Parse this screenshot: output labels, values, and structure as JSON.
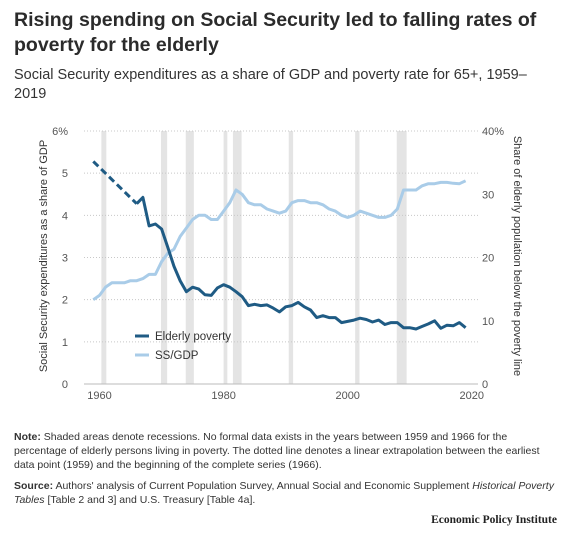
{
  "title": "Rising spending on Social Security led to falling rates of poverty for the elderly",
  "subtitle": "Social Security expenditures as a share of GDP and poverty rate for 65+, 1959–2019",
  "notes": {
    "note_label": "Note:",
    "note_text": "Shaded areas denote recessions. No formal data exists in the years between 1959 and 1966 for the percentage of elderly persons living in poverty. The dotted line denotes a linear extrapolation between the earliest data point (1959) and the beginning of the complete series (1966).",
    "source_label": "Source:",
    "source_text_1": "Authors' analysis of Current Population Survey, Annual Social and Economic Supplement",
    "source_italic": "Historical Poverty Tables",
    "source_text_2": "[Table 2 and 3] and U.S. Treasury [Table 4a]."
  },
  "credit": "Economic Policy Institute",
  "chart_data": {
    "type": "line",
    "title": "Rising spending on Social Security led to falling rates of poverty for the elderly",
    "subtitle": "Social Security expenditures as a share of GDP and poverty rate for 65+, 1959–2019",
    "xlabel": "",
    "ylabel_left": "Social Security expenditures as a share of GDP",
    "ylabel_right": "Share of elderly population below the poverty line",
    "xlim": [
      1957.5,
      2021
    ],
    "ylim_left": [
      0,
      6
    ],
    "ylim_right": [
      0,
      40
    ],
    "x_ticks": [
      1960,
      1980,
      2000,
      2020
    ],
    "y_left_ticks": [
      "0",
      "1",
      "2",
      "3",
      "4",
      "5",
      "6%"
    ],
    "y_right_ticks": [
      "0",
      "10",
      "20",
      "30",
      "40%"
    ],
    "grid": "horizontal dotted",
    "legend_position": "bottom-left",
    "recessions": [
      [
        1960.3,
        1961.1
      ],
      [
        1969.9,
        1970.9
      ],
      [
        1973.9,
        1975.2
      ],
      [
        1980.0,
        1980.6
      ],
      [
        1981.5,
        1982.9
      ],
      [
        1990.5,
        1991.2
      ],
      [
        2001.2,
        2001.9
      ],
      [
        2007.9,
        2009.5
      ]
    ],
    "series": [
      {
        "name": "Elderly poverty",
        "axis": "right",
        "color": "#1f5b84",
        "x": [
          1966,
          1967,
          1968,
          1969,
          1970,
          1971,
          1972,
          1973,
          1974,
          1975,
          1976,
          1977,
          1978,
          1979,
          1980,
          1981,
          1982,
          1983,
          1984,
          1985,
          1986,
          1987,
          1988,
          1989,
          1990,
          1991,
          1992,
          1993,
          1994,
          1995,
          1996,
          1997,
          1998,
          1999,
          2000,
          2001,
          2002,
          2003,
          2004,
          2005,
          2006,
          2007,
          2008,
          2009,
          2010,
          2011,
          2012,
          2013,
          2014,
          2015,
          2016,
          2017,
          2018,
          2019
        ],
        "values": [
          28.5,
          29.5,
          25.0,
          25.3,
          24.5,
          21.6,
          18.6,
          16.3,
          14.6,
          15.3,
          15.0,
          14.1,
          14.0,
          15.2,
          15.7,
          15.3,
          14.6,
          13.8,
          12.4,
          12.6,
          12.4,
          12.5,
          12.0,
          11.4,
          12.2,
          12.4,
          12.9,
          12.2,
          11.7,
          10.5,
          10.8,
          10.5,
          10.5,
          9.7,
          9.9,
          10.1,
          10.4,
          10.2,
          9.8,
          10.1,
          9.4,
          9.7,
          9.7,
          8.9,
          8.9,
          8.7,
          9.1,
          9.5,
          10.0,
          8.8,
          9.3,
          9.2,
          9.7,
          8.9
        ]
      },
      {
        "name": "Elderly poverty (linear extrapolation)",
        "axis": "right",
        "color": "#1f5b84",
        "style": "dashed",
        "x": [
          1959,
          1966
        ],
        "values": [
          35.2,
          28.5
        ]
      },
      {
        "name": "SS/GDP",
        "axis": "left",
        "color": "#a9cce8",
        "x": [
          1959,
          1960,
          1961,
          1962,
          1963,
          1964,
          1965,
          1966,
          1967,
          1968,
          1969,
          1970,
          1971,
          1972,
          1973,
          1974,
          1975,
          1976,
          1977,
          1978,
          1979,
          1980,
          1981,
          1982,
          1983,
          1984,
          1985,
          1986,
          1987,
          1988,
          1989,
          1990,
          1991,
          1992,
          1993,
          1994,
          1995,
          1996,
          1997,
          1998,
          1999,
          2000,
          2001,
          2002,
          2003,
          2004,
          2005,
          2006,
          2007,
          2008,
          2009,
          2010,
          2011,
          2012,
          2013,
          2014,
          2015,
          2016,
          2017,
          2018,
          2019
        ],
        "values": [
          2.0,
          2.1,
          2.3,
          2.4,
          2.4,
          2.4,
          2.45,
          2.45,
          2.5,
          2.6,
          2.6,
          2.9,
          3.1,
          3.2,
          3.5,
          3.7,
          3.9,
          4.0,
          4.0,
          3.9,
          3.9,
          4.1,
          4.3,
          4.6,
          4.5,
          4.3,
          4.25,
          4.25,
          4.15,
          4.1,
          4.05,
          4.1,
          4.3,
          4.35,
          4.35,
          4.3,
          4.3,
          4.25,
          4.15,
          4.1,
          4.0,
          3.95,
          4.0,
          4.1,
          4.05,
          4.0,
          3.95,
          3.95,
          4.0,
          4.15,
          4.6,
          4.6,
          4.6,
          4.7,
          4.75,
          4.75,
          4.78,
          4.78,
          4.76,
          4.75,
          4.82
        ]
      }
    ]
  }
}
